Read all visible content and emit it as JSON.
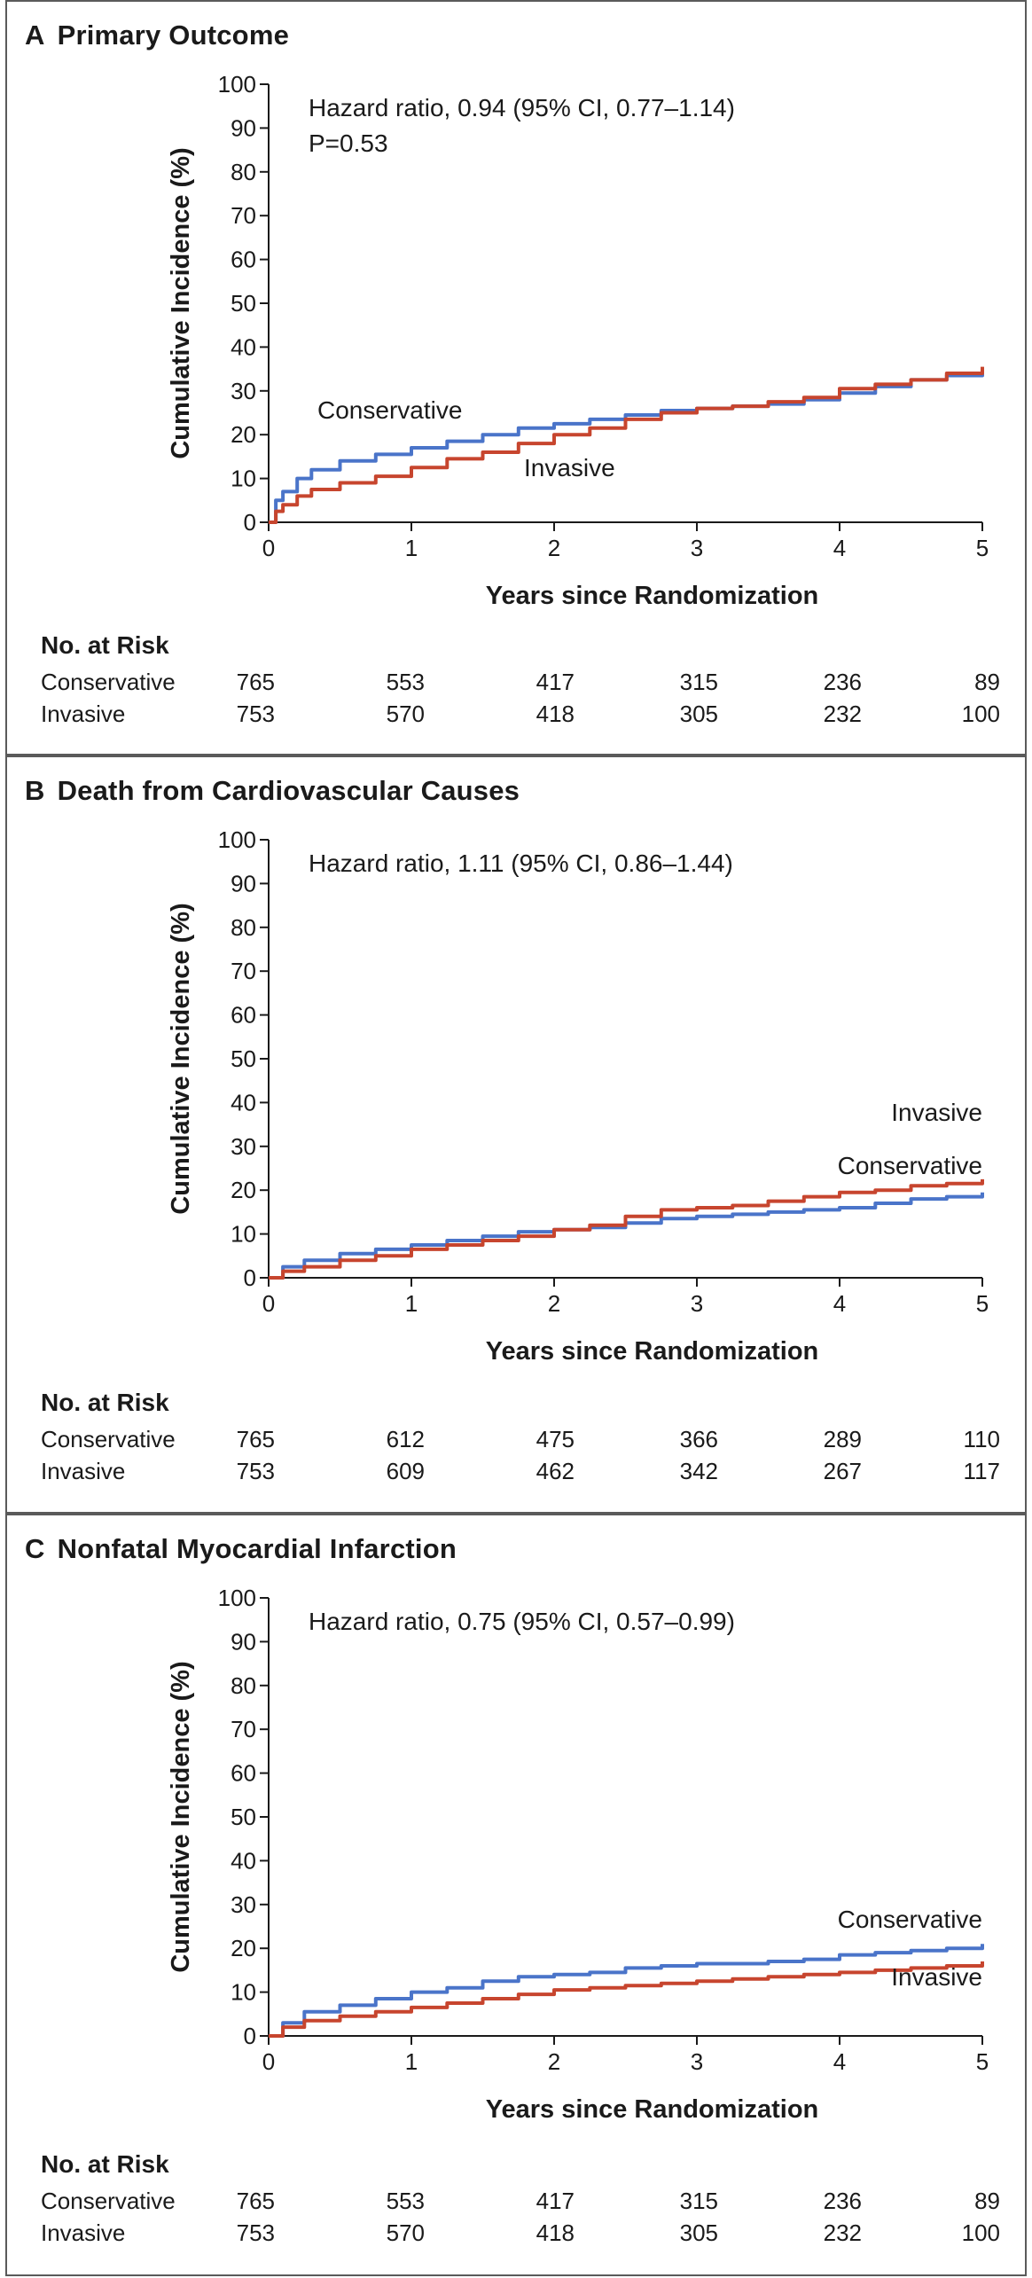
{
  "colors": {
    "conservative": "#4a74c9",
    "invasive": "#c7452e",
    "axis": "#1a1a1a",
    "border": "#5a5a5a"
  },
  "chart_data": [
    {
      "type": "line",
      "letter": "A",
      "title": "Primary Outcome",
      "xlabel": "Years since Randomization",
      "ylabel": "Cumulative Incidence (%)",
      "xlim": [
        0,
        5
      ],
      "ylim": [
        0,
        100
      ],
      "xticks": [
        "0",
        "1",
        "2",
        "3",
        "4",
        "5"
      ],
      "yticks": [
        "0",
        "10",
        "20",
        "30",
        "40",
        "50",
        "60",
        "70",
        "80",
        "90",
        "100"
      ],
      "annotations": [
        "Hazard ratio, 0.94 (95% CI, 0.77–1.14)",
        "P=0.53"
      ],
      "series": [
        {
          "name": "Conservative",
          "label": "Conservative",
          "x": [
            0,
            0.05,
            0.1,
            0.2,
            0.3,
            0.5,
            0.75,
            1,
            1.25,
            1.5,
            1.75,
            2,
            2.25,
            2.5,
            2.75,
            3,
            3.25,
            3.5,
            3.75,
            4,
            4.25,
            4.5,
            4.75,
            5
          ],
          "y": [
            0,
            5,
            7,
            10,
            12,
            14,
            15.5,
            17,
            18.5,
            20,
            21.5,
            22.5,
            23.5,
            24.5,
            25.5,
            26,
            26.5,
            27,
            28,
            29.5,
            31,
            32.5,
            33.5,
            34.5
          ]
        },
        {
          "name": "Invasive",
          "label": "Invasive",
          "x": [
            0,
            0.05,
            0.1,
            0.2,
            0.3,
            0.5,
            0.75,
            1,
            1.25,
            1.5,
            1.75,
            2,
            2.25,
            2.5,
            2.75,
            3,
            3.25,
            3.5,
            3.75,
            4,
            4.25,
            4.5,
            4.75,
            5
          ],
          "y": [
            0,
            2.5,
            4,
            6,
            7.5,
            9,
            10.5,
            12.5,
            14.5,
            16,
            18,
            20,
            21.5,
            23.5,
            25,
            26,
            26.5,
            27.5,
            28.5,
            30.5,
            31.5,
            32.5,
            34,
            35.5
          ]
        }
      ],
      "risk": {
        "title": "No. at Risk",
        "rows": [
          {
            "label": "Conservative",
            "values": [
              "765",
              "553",
              "417",
              "315",
              "236",
              "89"
            ]
          },
          {
            "label": "Invasive",
            "values": [
              "753",
              "570",
              "418",
              "305",
              "232",
              "100"
            ]
          }
        ]
      }
    },
    {
      "type": "line",
      "letter": "B",
      "title": "Death from Cardiovascular Causes",
      "xlabel": "Years since Randomization",
      "ylabel": "Cumulative Incidence (%)",
      "xlim": [
        0,
        5
      ],
      "ylim": [
        0,
        100
      ],
      "xticks": [
        "0",
        "1",
        "2",
        "3",
        "4",
        "5"
      ],
      "yticks": [
        "0",
        "10",
        "20",
        "30",
        "40",
        "50",
        "60",
        "70",
        "80",
        "90",
        "100"
      ],
      "annotations": [
        "Hazard ratio, 1.11 (95% CI, 0.86–1.44)"
      ],
      "series": [
        {
          "name": "Conservative",
          "label": "Conservative",
          "x": [
            0,
            0.1,
            0.25,
            0.5,
            0.75,
            1,
            1.25,
            1.5,
            1.75,
            2,
            2.25,
            2.5,
            2.75,
            3,
            3.25,
            3.5,
            3.75,
            4,
            4.25,
            4.5,
            4.75,
            5
          ],
          "y": [
            0,
            2.5,
            4,
            5.5,
            6.5,
            7.5,
            8.5,
            9.5,
            10.5,
            11,
            11.5,
            12.5,
            13.5,
            14,
            14.5,
            15,
            15.5,
            16,
            17,
            18,
            18.5,
            19.5
          ]
        },
        {
          "name": "Invasive",
          "label": "Invasive",
          "x": [
            0,
            0.1,
            0.25,
            0.5,
            0.75,
            1,
            1.25,
            1.5,
            1.75,
            2,
            2.25,
            2.5,
            2.75,
            3,
            3.25,
            3.5,
            3.75,
            4,
            4.25,
            4.5,
            4.75,
            5
          ],
          "y": [
            0,
            1.5,
            2.5,
            4,
            5,
            6.5,
            7.5,
            8.5,
            9.5,
            11,
            12,
            14,
            15.5,
            16,
            16.5,
            17.5,
            18.5,
            19.5,
            20,
            21,
            21.5,
            22.5
          ]
        }
      ],
      "risk": {
        "title": "No. at Risk",
        "rows": [
          {
            "label": "Conservative",
            "values": [
              "765",
              "612",
              "475",
              "366",
              "289",
              "110"
            ]
          },
          {
            "label": "Invasive",
            "values": [
              "753",
              "609",
              "462",
              "342",
              "267",
              "117"
            ]
          }
        ]
      }
    },
    {
      "type": "line",
      "letter": "C",
      "title": "Nonfatal Myocardial Infarction",
      "xlabel": "Years since Randomization",
      "ylabel": "Cumulative Incidence (%)",
      "xlim": [
        0,
        5
      ],
      "ylim": [
        0,
        100
      ],
      "xticks": [
        "0",
        "1",
        "2",
        "3",
        "4",
        "5"
      ],
      "yticks": [
        "0",
        "10",
        "20",
        "30",
        "40",
        "50",
        "60",
        "70",
        "80",
        "90",
        "100"
      ],
      "annotations": [
        "Hazard ratio, 0.75 (95% CI, 0.57–0.99)"
      ],
      "series": [
        {
          "name": "Conservative",
          "label": "Conservative",
          "x": [
            0,
            0.1,
            0.25,
            0.5,
            0.75,
            1,
            1.25,
            1.5,
            1.75,
            2,
            2.25,
            2.5,
            2.75,
            3,
            3.25,
            3.5,
            3.75,
            4,
            4.25,
            4.5,
            4.75,
            5
          ],
          "y": [
            0,
            3,
            5.5,
            7,
            8.5,
            10,
            11,
            12.5,
            13.5,
            14,
            14.5,
            15.5,
            16,
            16.5,
            16.5,
            17,
            17.5,
            18.5,
            19,
            19.5,
            20,
            21
          ]
        },
        {
          "name": "Invasive",
          "label": "Invasive",
          "x": [
            0,
            0.1,
            0.25,
            0.5,
            0.75,
            1,
            1.25,
            1.5,
            1.75,
            2,
            2.25,
            2.5,
            2.75,
            3,
            3.25,
            3.5,
            3.75,
            4,
            4.25,
            4.5,
            4.75,
            5
          ],
          "y": [
            0,
            2,
            3.5,
            4.5,
            5.5,
            6.5,
            7.5,
            8.5,
            9.5,
            10.5,
            11,
            11.5,
            12,
            12.5,
            13,
            13.5,
            14,
            14.5,
            15,
            15.5,
            16,
            17
          ]
        }
      ],
      "risk": {
        "title": "No. at Risk",
        "rows": [
          {
            "label": "Conservative",
            "values": [
              "765",
              "553",
              "417",
              "315",
              "236",
              "89"
            ]
          },
          {
            "label": "Invasive",
            "values": [
              "753",
              "570",
              "418",
              "305",
              "232",
              "100"
            ]
          }
        ]
      }
    }
  ]
}
